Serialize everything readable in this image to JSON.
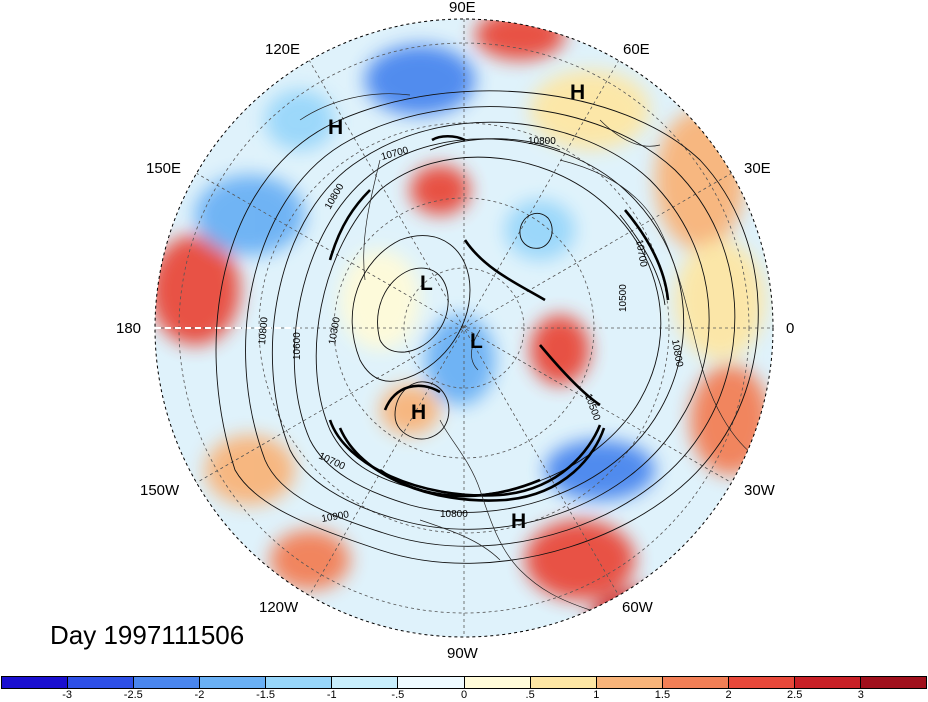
{
  "map": {
    "projection": "north-polar-stereographic",
    "day_label": "Day 1997111506",
    "longitude_labels": [
      "90E",
      "60E",
      "30E",
      "0",
      "30W",
      "60W",
      "90W",
      "120W",
      "150W",
      "180",
      "150E",
      "120E"
    ],
    "contour_labels": [
      "10700",
      "10800",
      "10800",
      "10600",
      "10300",
      "10500",
      "10800",
      "10700",
      "10900",
      "10800",
      "10800",
      "10700",
      "10500"
    ],
    "pressure_centers": [
      "H",
      "H",
      "L",
      "L",
      "H",
      "H"
    ]
  },
  "colorbar": {
    "colors": [
      "#1a0fd0",
      "#2d4fe6",
      "#4a86ee",
      "#6ab0f4",
      "#98d6fa",
      "#c8eefc",
      "#eefaff",
      "#fffbd9",
      "#fde6a4",
      "#f8b47a",
      "#f27f56",
      "#e8483a",
      "#c82026",
      "#a0101c"
    ],
    "tick_labels": [
      "-3",
      "-2.5",
      "-2",
      "-1.5",
      "-1",
      "-.5",
      "0",
      ".5",
      "1",
      "1.5",
      "2",
      "2.5",
      "3"
    ]
  }
}
